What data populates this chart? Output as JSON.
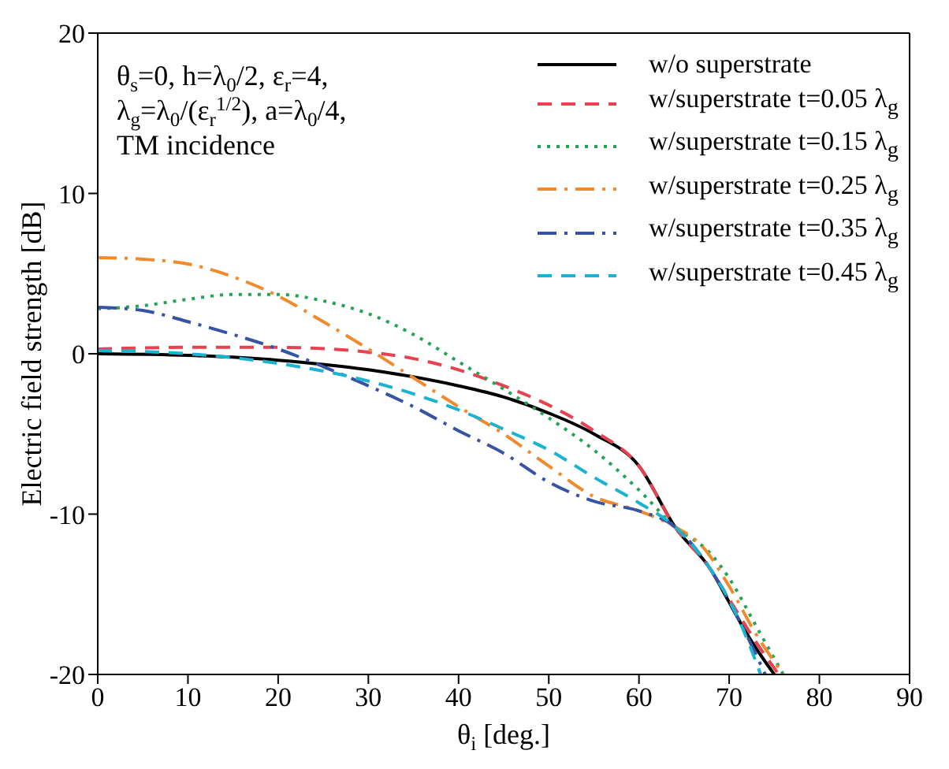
{
  "chart_data": {
    "type": "line",
    "xlabel": "θ$_{i}$ [deg.]",
    "ylabel": "Electric field strength [dB]",
    "xlim": [
      0,
      90
    ],
    "xticks": [
      0,
      10,
      20,
      30,
      40,
      50,
      60,
      70,
      80,
      90
    ],
    "ylim": [
      -20,
      20
    ],
    "yticks": [
      -20,
      -10,
      0,
      10,
      20
    ],
    "grid": false,
    "legend": "top right",
    "marker": "none",
    "annotations": [
      "θ$_{s}$=0, h=λ$_{0}$/2, ε$_{r}$=4,",
      "λ$_{g}$=λ$_{0}$/(ε$_{r}$$^{1/2}$), a=λ$_{0}$/4,",
      "TM incidence"
    ],
    "series": [
      {
        "name": "w/o superstrate",
        "color": "#000000",
        "line_style": "solid",
        "x": [
          0,
          10,
          20,
          30,
          40,
          45,
          50,
          55,
          60,
          64,
          68,
          70,
          72,
          75
        ],
        "values": [
          0,
          -0.1,
          -0.4,
          -1.0,
          -2.0,
          -2.7,
          -3.7,
          -5.0,
          -7.0,
          -10.8,
          -13.5,
          -15.5,
          -17.5,
          -20
        ]
      },
      {
        "name": "w/superstrate t=0.05 λ$_{g}$",
        "color": "#e8414f",
        "line_style": "dashed",
        "x": [
          0,
          10,
          20,
          30,
          35,
          40,
          45,
          50,
          55,
          60,
          64,
          68,
          70,
          73,
          75.5
        ],
        "values": [
          0.3,
          0.4,
          0.4,
          0.1,
          -0.3,
          -1.0,
          -2.0,
          -3.2,
          -4.8,
          -7.0,
          -10.8,
          -13.5,
          -15.3,
          -18,
          -20
        ]
      },
      {
        "name": "w/superstrate t=0.15 λ$_{g}$",
        "color": "#22a455",
        "line_style": "dotted",
        "x": [
          0,
          5,
          10,
          15,
          20,
          25,
          30,
          35,
          40,
          45,
          50,
          55,
          60,
          64,
          68,
          70,
          73,
          76
        ],
        "values": [
          2.8,
          3.0,
          3.4,
          3.7,
          3.7,
          3.3,
          2.5,
          1.2,
          -0.5,
          -2.2,
          -4,
          -6,
          -8.5,
          -10.8,
          -12.5,
          -14,
          -17,
          -20
        ]
      },
      {
        "name": "w/superstrate t=0.25 λ$_{g}$",
        "color": "#f08a2c",
        "line_style": "dashdot",
        "x": [
          0,
          5,
          10,
          15,
          20,
          25,
          30,
          35,
          40,
          45,
          50,
          55,
          60,
          64,
          67,
          70,
          73,
          76
        ],
        "values": [
          6.0,
          5.9,
          5.6,
          4.8,
          3.6,
          2,
          0.3,
          -1.5,
          -3.3,
          -5,
          -7,
          -8.9,
          -9.8,
          -10.8,
          -12,
          -14.5,
          -17.5,
          -20
        ]
      },
      {
        "name": "w/superstrate t=0.35 λ$_{g}$",
        "color": "#3653a4",
        "line_style": "dashdot",
        "x": [
          0,
          5,
          10,
          15,
          20,
          25,
          30,
          35,
          40,
          45,
          50,
          55,
          60,
          64,
          68,
          71,
          74
        ],
        "values": [
          2.9,
          2.7,
          2.0,
          1.2,
          0.3,
          -0.8,
          -2,
          -3.3,
          -4.8,
          -6.2,
          -8,
          -9.2,
          -9.8,
          -10.8,
          -13.5,
          -16.5,
          -20
        ]
      },
      {
        "name": "w/superstrate t=0.45 λ$_{g}$",
        "color": "#1bb3d1",
        "line_style": "dashed",
        "x": [
          0,
          10,
          20,
          30,
          35,
          40,
          45,
          50,
          55,
          60,
          64,
          68,
          71,
          73.5
        ],
        "values": [
          0.2,
          0,
          -0.6,
          -1.7,
          -2.5,
          -3.5,
          -4.7,
          -6,
          -7.7,
          -9.3,
          -10.8,
          -13.5,
          -16.5,
          -20
        ]
      }
    ]
  }
}
